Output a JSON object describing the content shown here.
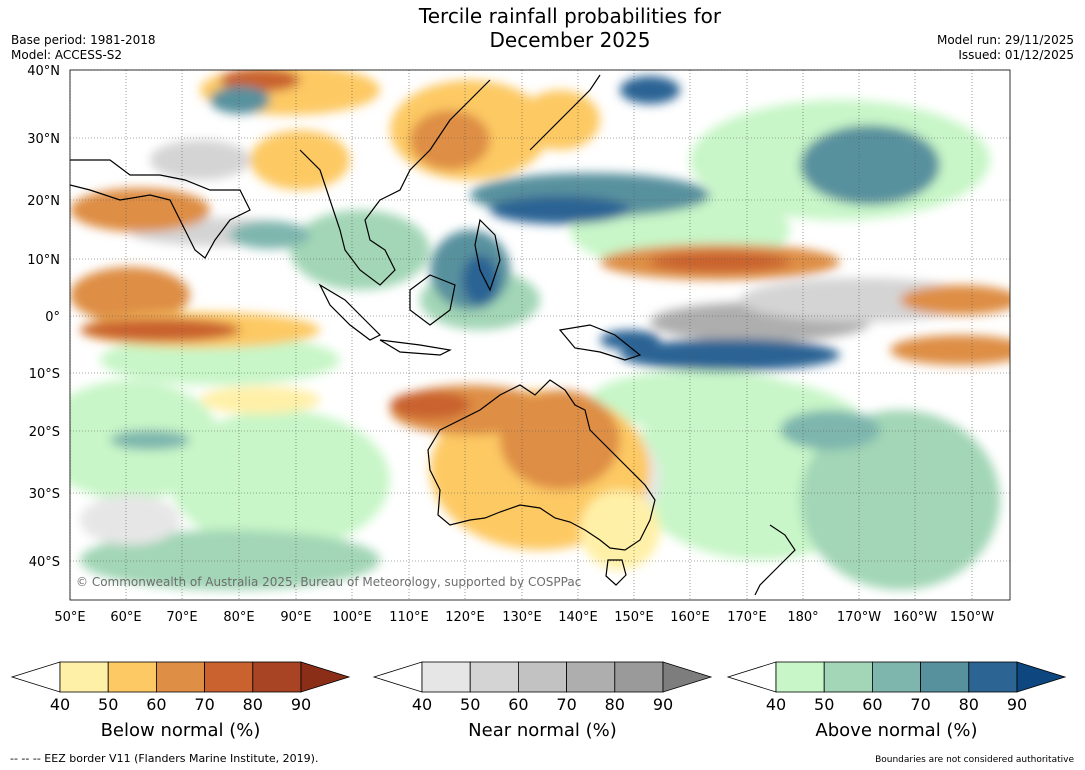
{
  "title_line1": "Tercile rainfall probabilities for",
  "title_line2": "December 2025",
  "meta": {
    "base_period": "Base period: 1981-2018",
    "model": "Model: ACCESS-S2",
    "model_run": "Model run: 29/11/2025",
    "issued": "Issued: 01/12/2025"
  },
  "map": {
    "lat_labels": [
      "40°N",
      "30°N",
      "20°N",
      "10°N",
      "0°",
      "10°S",
      "20°S",
      "30°S",
      "40°S"
    ],
    "lon_labels": [
      "50°E",
      "60°E",
      "70°E",
      "80°E",
      "90°E",
      "100°E",
      "110°E",
      "120°E",
      "130°E",
      "140°E",
      "150°E",
      "160°E",
      "170°E",
      "180°",
      "170°W",
      "160°W",
      "150°W"
    ],
    "copyright": "© Commonwealth of Australia 2025, Bureau of Meteorology, supported by COSPPac"
  },
  "legends": [
    {
      "label": "Below normal (%)",
      "ticks": [
        "40",
        "50",
        "60",
        "70",
        "80",
        "90"
      ],
      "colors": [
        "#ffffff",
        "#fff0a8",
        "#fdc964",
        "#de8e45",
        "#c9622f",
        "#a84423",
        "#8b2e17"
      ]
    },
    {
      "label": "Near normal (%)",
      "ticks": [
        "40",
        "50",
        "60",
        "70",
        "80",
        "90"
      ],
      "colors": [
        "#ffffff",
        "#e6e6e6",
        "#d4d4d4",
        "#c2c2c2",
        "#aeaeae",
        "#9a9a9a",
        "#7d7d7d"
      ]
    },
    {
      "label": "Above normal (%)",
      "ticks": [
        "40",
        "50",
        "60",
        "70",
        "80",
        "90"
      ],
      "colors": [
        "#ffffff",
        "#c8f6c8",
        "#a2d6b6",
        "#7eb6ae",
        "#58919e",
        "#2c6494",
        "#0e4680"
      ]
    }
  ],
  "footer": {
    "eez": "-- -- -- EEZ border V11 (Flanders Marine Institute, 2019).",
    "boundaries": "Boundaries are not considered authoritative"
  }
}
